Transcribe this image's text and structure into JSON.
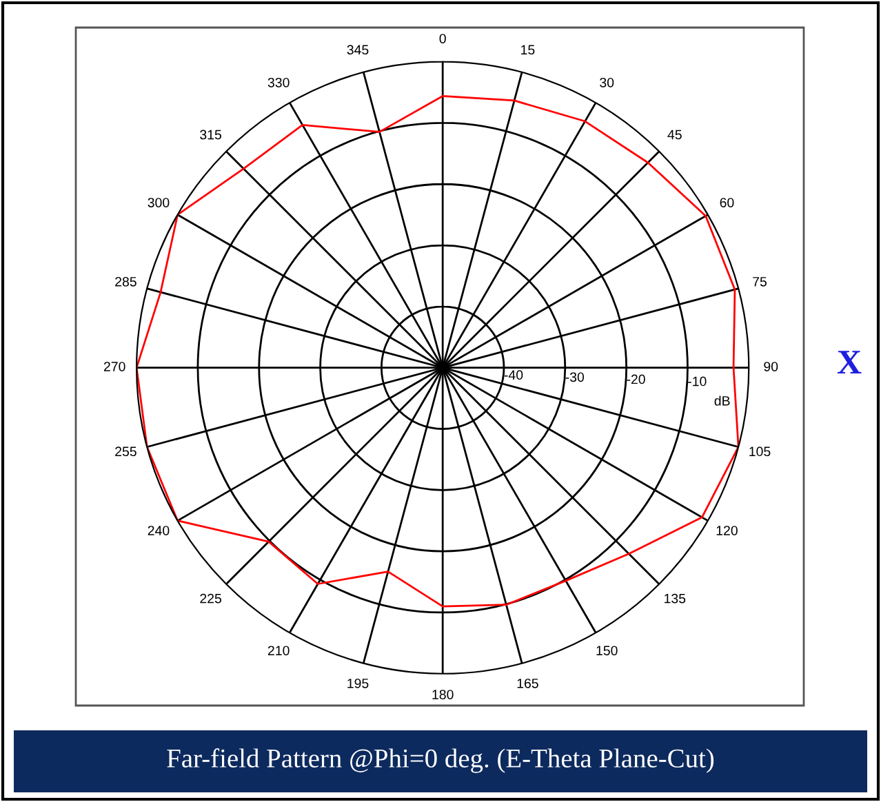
{
  "chart_data": {
    "type": "radar",
    "title": "Far-field Pattern @Phi=0 deg. (E-Theta Plane-Cut)",
    "ylabel": "dB",
    "categories": [
      "0",
      "15",
      "30",
      "45",
      "60",
      "75",
      "90",
      "105",
      "120",
      "135",
      "150",
      "165",
      "180",
      "195",
      "210",
      "225",
      "240",
      "255",
      "270",
      "285",
      "300",
      "315",
      "330",
      "345"
    ],
    "series": [
      {
        "color": "#ff0000",
        "values": [
          -5.6,
          -4.8,
          -3.5,
          -2.6,
          -0.4,
          -0.6,
          -2.5,
          0,
          -1.1,
          -7.0,
          -9.8,
          -9.9,
          -11,
          -15.5,
          -9.2,
          -9.8,
          0,
          0,
          0,
          -2.3,
          0,
          -4.0,
          -4.2,
          -10.1
        ]
      }
    ],
    "ylim": [
      -50,
      0
    ],
    "yticks": [
      -40,
      -30,
      -20,
      -10
    ],
    "grid": true,
    "annotations": [
      "X"
    ]
  }
}
